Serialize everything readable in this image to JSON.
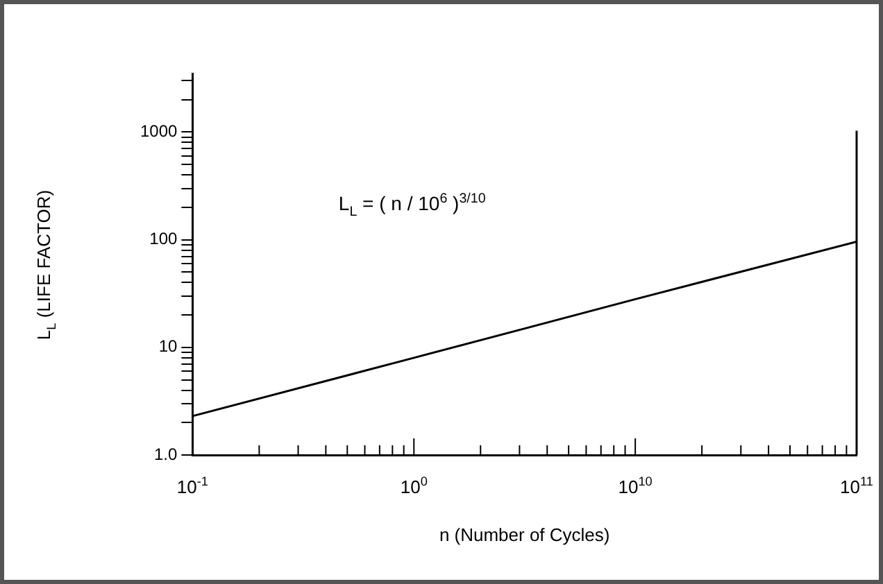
{
  "chart_data": {
    "type": "line",
    "xlabel": "n (Number of Cycles)",
    "ylabel": "L$_{L}$  (LIFE FACTOR)",
    "annotations": [
      "L$_{L}$  =  ( n / 10$^{6}$ )$^{3/10}$"
    ],
    "categories": [
      "10$^{-1}$",
      "10$^{0}$",
      "10$^{10}$",
      "10$^{11}$"
    ],
    "series": [
      {
        "color": "#000000",
        "values": [
          2.3,
          8,
          28,
          96
        ]
      }
    ],
    "log": "y",
    "grid": false,
    "legend": false,
    "marker": "none",
    "line_style": "solid",
    "ylim": [
      1,
      3500
    ],
    "yticks": [
      {
        "value": 1,
        "label": "1.0"
      },
      {
        "value": 2,
        "label": null
      },
      {
        "value": 3,
        "label": null
      },
      {
        "value": 4,
        "label": null
      },
      {
        "value": 5,
        "label": null
      },
      {
        "value": 6,
        "label": null
      },
      {
        "value": 7,
        "label": null
      },
      {
        "value": 8,
        "label": null
      },
      {
        "value": 9,
        "label": null
      },
      10,
      {
        "value": 20,
        "label": null
      },
      {
        "value": 30,
        "label": null
      },
      {
        "value": 40,
        "label": null
      },
      {
        "value": 50,
        "label": null
      },
      {
        "value": 60,
        "label": null
      },
      {
        "value": 70,
        "label": null
      },
      {
        "value": 80,
        "label": null
      },
      {
        "value": 90,
        "label": null
      },
      100,
      {
        "value": 200,
        "label": null
      },
      {
        "value": 300,
        "label": null
      },
      {
        "value": 400,
        "label": null
      },
      {
        "value": 500,
        "label": null
      },
      {
        "value": 600,
        "label": null
      },
      {
        "value": 700,
        "label": null
      },
      {
        "value": 800,
        "label": null
      },
      {
        "value": 900,
        "label": null
      },
      1000,
      {
        "value": 2000,
        "label": null
      },
      {
        "value": 3000,
        "label": null
      }
    ]
  }
}
